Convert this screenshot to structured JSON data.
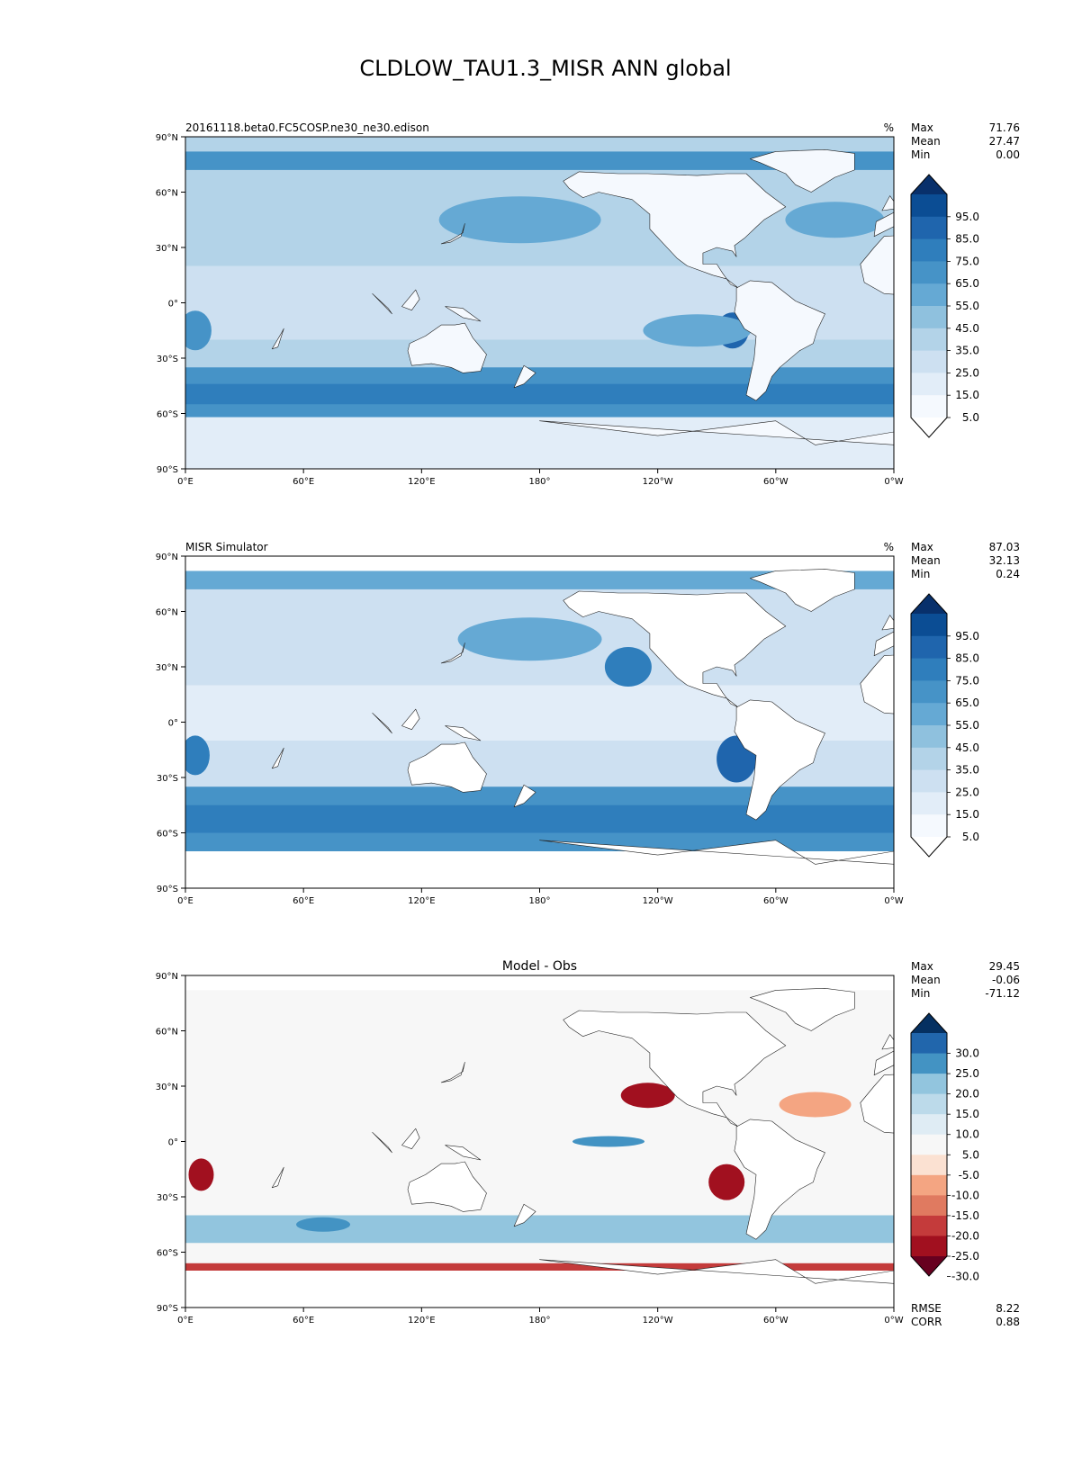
{
  "title": "CLDLOW_TAU1.3_MISR ANN global",
  "x_ticks": [
    "0°E",
    "60°E",
    "120°E",
    "180°",
    "120°W",
    "60°W",
    "0°W"
  ],
  "y_ticks": [
    "90°N",
    "60°N",
    "30°N",
    "0°",
    "30°S",
    "60°S",
    "90°S"
  ],
  "panels": [
    {
      "id": "model",
      "left_title": "20161118.beta0.FC5COSP.ne30_ne30.edison",
      "center_title": "",
      "units": "%",
      "stats": [
        {
          "label": "Max",
          "value": "71.76"
        },
        {
          "label": "Mean",
          "value": "27.47"
        },
        {
          "label": "Min",
          "value": "0.00"
        }
      ],
      "colorbar": {
        "labels": [
          "95.0",
          "85.0",
          "75.0",
          "65.0",
          "55.0",
          "45.0",
          "35.0",
          "25.0",
          "15.0",
          "5.0"
        ],
        "colors": [
          "#08306b",
          "#0b4d94",
          "#1f65ad",
          "#2f7ebc",
          "#4693c7",
          "#65a9d4",
          "#8fc1de",
          "#b3d3e8",
          "#cde0f1",
          "#e2edf8",
          "#f5f9fe",
          "#ffffff"
        ]
      },
      "footer": []
    },
    {
      "id": "obs",
      "left_title": "MISR Simulator",
      "center_title": "",
      "units": "%",
      "stats": [
        {
          "label": "Max",
          "value": "87.03"
        },
        {
          "label": "Mean",
          "value": "32.13"
        },
        {
          "label": "Min",
          "value": "0.24"
        }
      ],
      "colorbar": {
        "labels": [
          "95.0",
          "85.0",
          "75.0",
          "65.0",
          "55.0",
          "45.0",
          "35.0",
          "25.0",
          "15.0",
          "5.0"
        ],
        "colors": [
          "#08306b",
          "#0b4d94",
          "#1f65ad",
          "#2f7ebc",
          "#4693c7",
          "#65a9d4",
          "#8fc1de",
          "#b3d3e8",
          "#cde0f1",
          "#e2edf8",
          "#f5f9fe",
          "#ffffff"
        ]
      },
      "footer": []
    },
    {
      "id": "diff",
      "left_title": "",
      "center_title": "Model - Obs",
      "units": "",
      "stats": [
        {
          "label": "Max",
          "value": "29.45"
        },
        {
          "label": "Mean",
          "value": "-0.06"
        },
        {
          "label": "Min",
          "value": "-71.12"
        }
      ],
      "colorbar": {
        "labels": [
          "30.0",
          "25.0",
          "20.0",
          "15.0",
          "10.0",
          "5.0",
          "-5.0",
          "-10.0",
          "-15.0",
          "-20.0",
          "-25.0",
          "-30.0"
        ],
        "colors": [
          "#053061",
          "#2166ac",
          "#4393c3",
          "#92c5de",
          "#bcdaea",
          "#dfecf4",
          "#f7f7f7",
          "#fbe1d2",
          "#f4a582",
          "#e07a60",
          "#c43b3b",
          "#a1101f",
          "#67001f"
        ]
      },
      "footer": [
        {
          "label": "RMSE",
          "value": "8.22"
        },
        {
          "label": "CORR",
          "value": "0.88"
        }
      ]
    }
  ],
  "colors": {
    "ocean_model": "#b3d3e8",
    "band_model": "#4693c7",
    "land_model": "#f5f9fe",
    "ocean_obs": "#cde0f1",
    "band_obs": "#4693c7",
    "diff_neutral": "#f7f7f7",
    "diff_red": "#c43b3b",
    "diff_blue": "#92c5de"
  }
}
